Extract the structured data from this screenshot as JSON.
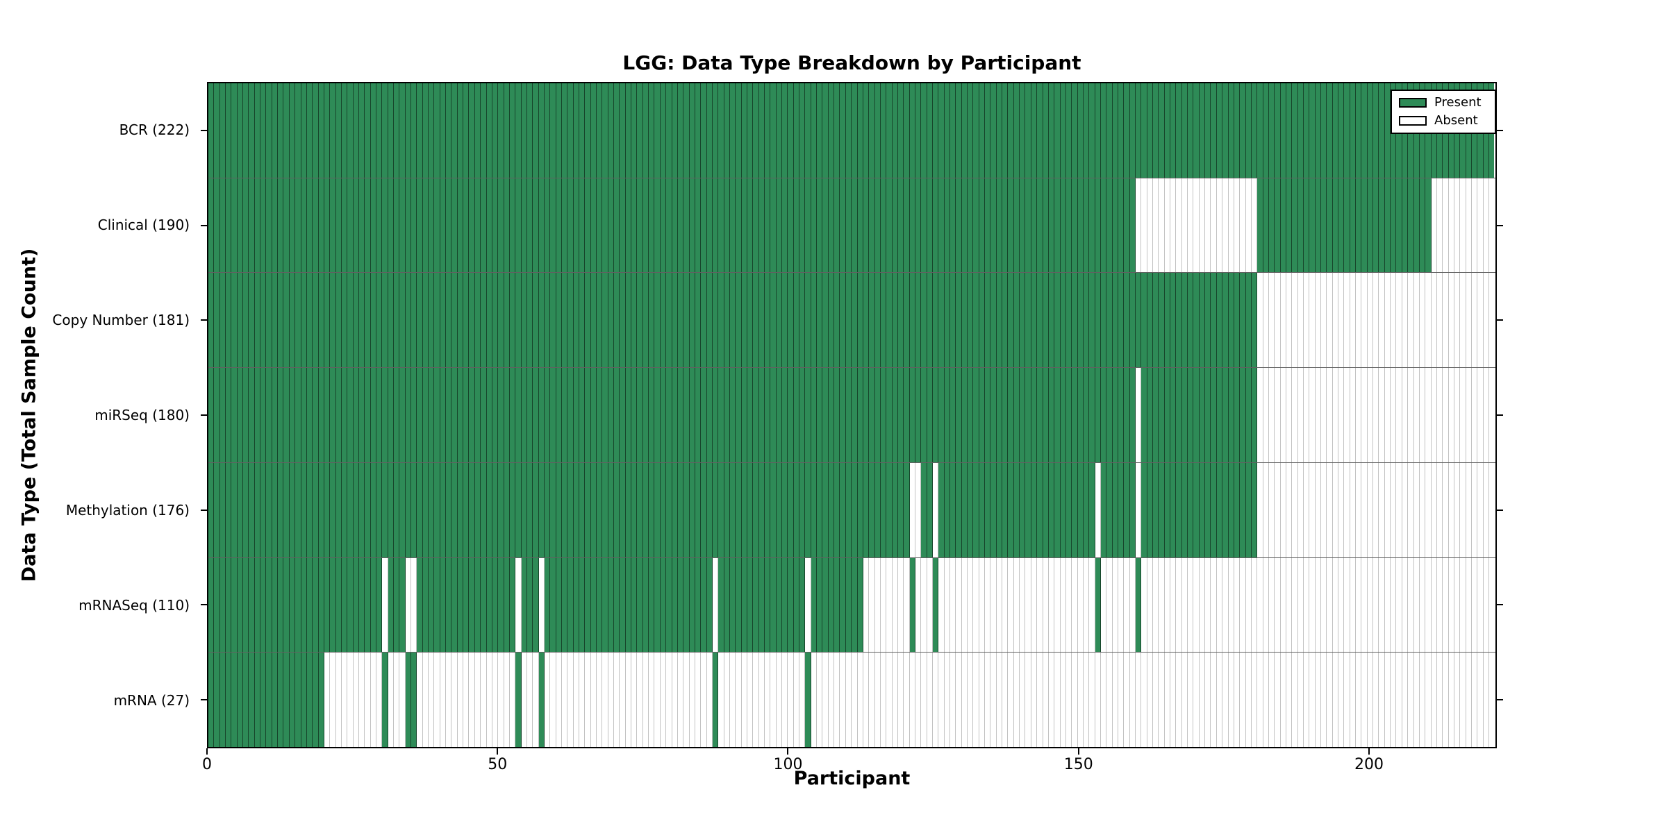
{
  "title": "LGG: Data Type Breakdown by Participant",
  "colors": {
    "present": "#2e8b57",
    "absent": "#ffffff",
    "axis": "#000000"
  },
  "legend": {
    "items": [
      {
        "label": "Present",
        "color": "#2e8b57"
      },
      {
        "label": "Absent",
        "color": "#ffffff"
      }
    ]
  },
  "chart_data": {
    "type": "heatmap",
    "title": "LGG: Data Type Breakdown by Participant",
    "xlabel": "Participant",
    "ylabel": "Data Type (Total Sample Count)",
    "n_participants": 222,
    "xlim": [
      0,
      222
    ],
    "x_ticks": [
      0,
      50,
      100,
      150,
      200
    ],
    "grid": false,
    "legend_position": "upper right",
    "legend": [
      {
        "label": "Present",
        "color": "#2e8b57"
      },
      {
        "label": "Absent",
        "color": "#ffffff"
      }
    ],
    "rows": [
      {
        "key": "bcr",
        "label": "BCR (222)",
        "data_type": "BCR",
        "total_sample_count": 222,
        "present_ranges": [
          [
            0,
            221
          ]
        ]
      },
      {
        "key": "clinical",
        "label": "Clinical (190)",
        "data_type": "Clinical",
        "total_sample_count": 190,
        "present_ranges": [
          [
            0,
            159
          ],
          [
            181,
            210
          ]
        ]
      },
      {
        "key": "copy-number",
        "label": "Copy Number (181)",
        "data_type": "Copy Number",
        "total_sample_count": 181,
        "present_ranges": [
          [
            0,
            180
          ]
        ]
      },
      {
        "key": "mirseq",
        "label": "miRSeq (180)",
        "data_type": "miRSeq",
        "total_sample_count": 180,
        "present_ranges": [
          [
            0,
            159
          ],
          [
            161,
            180
          ]
        ]
      },
      {
        "key": "methylation",
        "label": "Methylation (176)",
        "data_type": "Methylation",
        "total_sample_count": 176,
        "present_ranges": [
          [
            0,
            120
          ],
          [
            123,
            124
          ],
          [
            126,
            152
          ],
          [
            154,
            159
          ],
          [
            161,
            180
          ]
        ]
      },
      {
        "key": "mrnaseq",
        "label": "mRNASeq (110)",
        "data_type": "mRNASeq",
        "total_sample_count": 110,
        "present_ranges": [
          [
            0,
            29
          ],
          [
            31,
            33
          ],
          [
            36,
            52
          ],
          [
            54,
            56
          ],
          [
            58,
            86
          ],
          [
            88,
            102
          ],
          [
            104,
            112
          ],
          [
            121,
            121
          ],
          [
            125,
            125
          ],
          [
            153,
            153
          ],
          [
            160,
            160
          ]
        ]
      },
      {
        "key": "mrna",
        "label": "mRNA (27)",
        "data_type": "mRNA",
        "total_sample_count": 27,
        "present_ranges": [
          [
            0,
            19
          ],
          [
            30,
            30
          ],
          [
            34,
            35
          ],
          [
            53,
            53
          ],
          [
            57,
            57
          ],
          [
            87,
            87
          ],
          [
            103,
            103
          ]
        ]
      }
    ]
  }
}
